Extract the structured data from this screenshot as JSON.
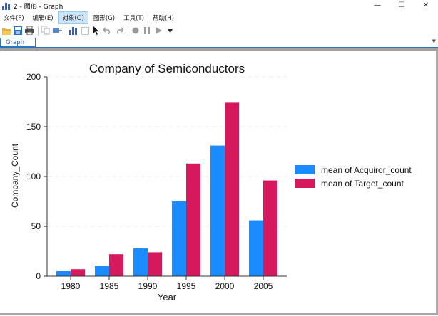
{
  "window": {
    "title": "2 - 图形 - Graph",
    "minimize_label": "—",
    "maximize_label": "☐",
    "close_label": "✕"
  },
  "menu": {
    "items": [
      "文件(F)",
      "编辑(E)",
      "对象(O)",
      "图形(G)",
      "工具(T)",
      "帮助(H)"
    ],
    "active_index": 2
  },
  "toolbar": {
    "icons": [
      "open-icon",
      "save-icon",
      "print-icon",
      "copy-icon",
      "rename-icon",
      "chart-editor-icon",
      "select-icon",
      "pointer-icon",
      "undo-icon",
      "redo-icon",
      "record-icon",
      "pause-icon",
      "play-icon",
      "dropdown-icon"
    ]
  },
  "tab": {
    "label": "Graph"
  },
  "colors": {
    "acquiror": "#1a8cff",
    "target": "#d6195d",
    "active_menu": "#cce4f7",
    "tab_accent": "#2b73c4"
  },
  "chart_data": {
    "type": "bar",
    "title": "Company of Semiconductors",
    "xlabel": "Year",
    "ylabel": "Company_Count",
    "categories": [
      "1980",
      "1985",
      "1990",
      "1995",
      "2000",
      "2005"
    ],
    "ylim": [
      0,
      200
    ],
    "yticks": [
      0,
      50,
      100,
      150,
      200
    ],
    "grid": true,
    "legend_position": "right",
    "series": [
      {
        "name": "mean of Acquiror_count",
        "color": "#1a8cff",
        "values": [
          5,
          10,
          28,
          75,
          131,
          56
        ]
      },
      {
        "name": "mean of Target_count",
        "color": "#d6195d",
        "values": [
          7,
          22,
          24,
          113,
          174,
          96
        ]
      }
    ]
  }
}
